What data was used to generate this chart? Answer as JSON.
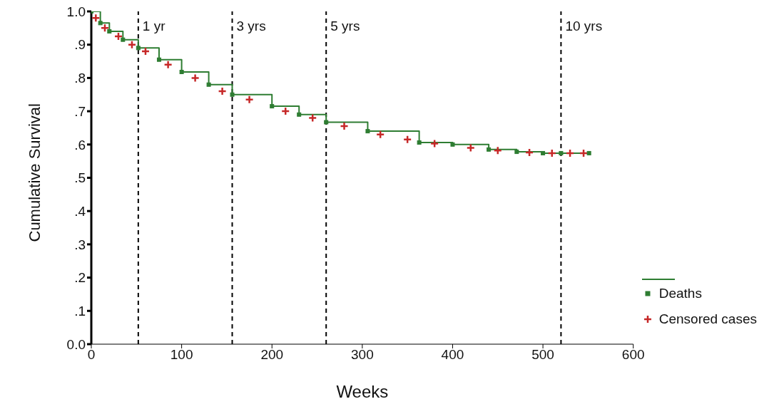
{
  "chart_data": {
    "type": "step",
    "xlabel": "Weeks",
    "ylabel": "Cumulative Survival",
    "xlim": [
      0,
      600
    ],
    "xticks": [
      0,
      100,
      200,
      300,
      400,
      500,
      600
    ],
    "ylim": [
      0,
      1
    ],
    "yticks": [
      {
        "value": 0,
        "label": "0.0"
      },
      {
        "value": 0.1,
        "label": ".1"
      },
      {
        "value": 0.2,
        "label": ".2"
      },
      {
        "value": 0.3,
        "label": ".3"
      },
      {
        "value": 0.4,
        "label": ".4"
      },
      {
        "value": 0.5,
        "label": ".5"
      },
      {
        "value": 0.6,
        "label": ".6"
      },
      {
        "value": 0.7,
        "label": ".7"
      },
      {
        "value": 0.8,
        "label": ".8"
      },
      {
        "value": 0.9,
        "label": ".9"
      },
      {
        "value": 1,
        "label": "1.0"
      }
    ],
    "grid": false,
    "legend": "bottom right",
    "series": [
      {
        "name": "Deaths",
        "marker": "square",
        "color": "#2e7d32",
        "x": [
          0,
          10,
          20,
          35,
          52,
          75,
          100,
          130,
          156,
          200,
          230,
          260,
          306,
          363,
          400,
          440,
          471,
          500,
          520,
          551
        ],
        "values": [
          1.0,
          0.965,
          0.94,
          0.915,
          0.89,
          0.855,
          0.818,
          0.78,
          0.75,
          0.715,
          0.69,
          0.667,
          0.64,
          0.606,
          0.6,
          0.585,
          0.578,
          0.574,
          0.574,
          0.574
        ]
      },
      {
        "name": "Censored cases",
        "type": "scatter",
        "marker": "cross",
        "color": "#c62828",
        "x": [
          5,
          15,
          30,
          45,
          60,
          85,
          115,
          145,
          175,
          215,
          245,
          280,
          320,
          350,
          380,
          420,
          450,
          485,
          510,
          530,
          545
        ],
        "values": [
          0.98,
          0.95,
          0.925,
          0.9,
          0.88,
          0.84,
          0.8,
          0.76,
          0.735,
          0.7,
          0.68,
          0.655,
          0.63,
          0.615,
          0.603,
          0.59,
          0.582,
          0.576,
          0.574,
          0.574,
          0.574
        ]
      }
    ],
    "ref_lines": [
      {
        "axis": "x",
        "value": 52,
        "label": "1 yr",
        "color": "#000000",
        "line_style": "dashed"
      },
      {
        "axis": "x",
        "value": 156,
        "label": "3 yrs",
        "color": "#000000",
        "line_style": "dashed"
      },
      {
        "axis": "x",
        "value": 260,
        "label": "5 yrs",
        "color": "#000000",
        "line_style": "dashed"
      },
      {
        "axis": "x",
        "value": 520,
        "label": "10 yrs",
        "color": "#000000",
        "line_style": "dashed"
      }
    ]
  }
}
